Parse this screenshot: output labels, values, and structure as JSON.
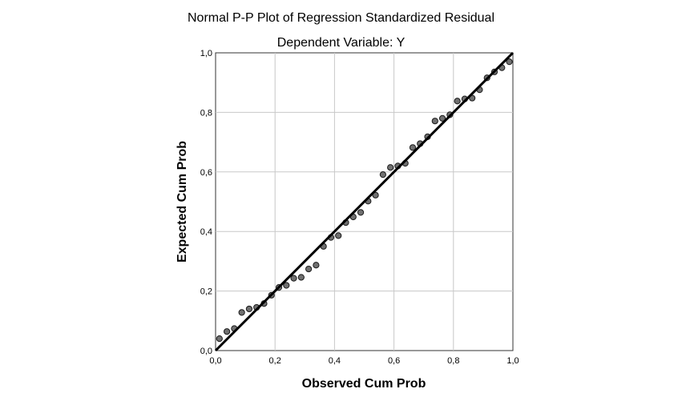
{
  "chart_data": {
    "type": "scatter",
    "title": "Normal P-P Plot of Regression Standardized Residual",
    "subtitle": "Dependent Variable: Y",
    "xlabel": "Observed Cum Prob",
    "ylabel": "Expected Cum Prob",
    "xlim": [
      0.0,
      1.0
    ],
    "ylim": [
      0.0,
      1.0
    ],
    "x_ticks": [
      "0,0",
      "0,2",
      "0,4",
      "0,6",
      "0,8",
      "1,0"
    ],
    "y_ticks": [
      "0,0",
      "0,2",
      "0,4",
      "0,6",
      "0,8",
      "1,0"
    ],
    "tick_values": [
      0.0,
      0.2,
      0.4,
      0.6,
      0.8,
      1.0
    ],
    "grid": true,
    "reference_line": [
      [
        0.0,
        0.0
      ],
      [
        1.0,
        1.0
      ]
    ],
    "points": [
      [
        0.013,
        0.04
      ],
      [
        0.038,
        0.064
      ],
      [
        0.063,
        0.074
      ],
      [
        0.088,
        0.128
      ],
      [
        0.113,
        0.14
      ],
      [
        0.138,
        0.145
      ],
      [
        0.163,
        0.158
      ],
      [
        0.188,
        0.186
      ],
      [
        0.213,
        0.212
      ],
      [
        0.238,
        0.219
      ],
      [
        0.263,
        0.243
      ],
      [
        0.288,
        0.246
      ],
      [
        0.313,
        0.274
      ],
      [
        0.338,
        0.287
      ],
      [
        0.363,
        0.35
      ],
      [
        0.388,
        0.38
      ],
      [
        0.413,
        0.386
      ],
      [
        0.438,
        0.43
      ],
      [
        0.463,
        0.449
      ],
      [
        0.488,
        0.464
      ],
      [
        0.513,
        0.502
      ],
      [
        0.538,
        0.522
      ],
      [
        0.563,
        0.591
      ],
      [
        0.588,
        0.615
      ],
      [
        0.613,
        0.62
      ],
      [
        0.638,
        0.629
      ],
      [
        0.663,
        0.682
      ],
      [
        0.688,
        0.695
      ],
      [
        0.713,
        0.718
      ],
      [
        0.738,
        0.771
      ],
      [
        0.763,
        0.78
      ],
      [
        0.788,
        0.792
      ],
      [
        0.813,
        0.838
      ],
      [
        0.838,
        0.845
      ],
      [
        0.863,
        0.848
      ],
      [
        0.888,
        0.876
      ],
      [
        0.913,
        0.916
      ],
      [
        0.938,
        0.936
      ],
      [
        0.963,
        0.95
      ],
      [
        0.988,
        0.97
      ]
    ],
    "colors": {
      "point_fill": "#707070",
      "point_stroke": "#1a1a1a",
      "reference_line": "#000000",
      "grid": "#c8c8c8",
      "frame": "#333333"
    }
  }
}
